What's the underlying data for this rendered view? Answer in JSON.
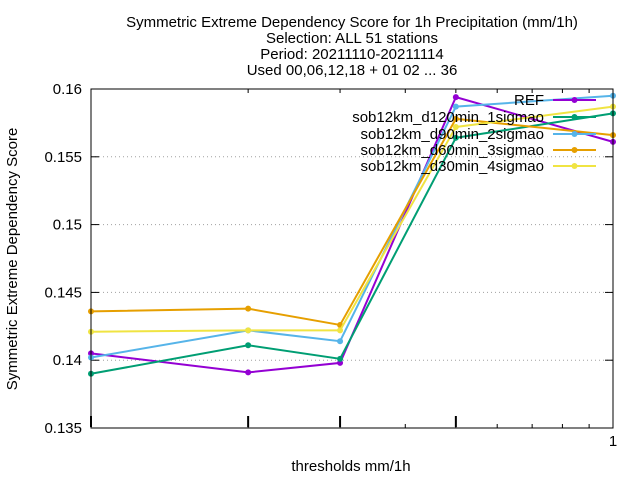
{
  "chart_data": {
    "type": "line",
    "title_lines": [
      "Symmetric Extreme Dependency Score  for 1h Precipitation (mm/1h)",
      "Selection: ALL     51 stations",
      "Period: 20211110-20211114",
      "Used 00,06,12,18 + 01 02 ... 36"
    ],
    "xlabel": "thresholds mm/1h",
    "ylabel": "Symmetric Extreme Dependency Score",
    "xscale": "log",
    "x": [
      0.1,
      0.2,
      0.3,
      0.5,
      1.0
    ],
    "xlim": [
      0.1,
      1.0
    ],
    "ylim": [
      0.135,
      0.16
    ],
    "x_tick_labels": [
      {
        "value": 1.0,
        "label": "1"
      }
    ],
    "y_ticks": [
      0.135,
      0.14,
      0.145,
      0.15,
      0.155,
      0.16
    ],
    "y_tick_labels": [
      "0.135",
      "0.14",
      "0.145",
      "0.15",
      "0.155",
      "0.16"
    ],
    "grid": true,
    "legend_position": "top-right",
    "series": [
      {
        "name": "REF",
        "color": "#9400d3",
        "values": [
          0.1405,
          0.1391,
          0.1398,
          0.1594,
          0.1561
        ]
      },
      {
        "name": "sob12km_d120min_1sigmao",
        "color": "#009e73",
        "values": [
          0.139,
          0.1411,
          0.1401,
          0.1564,
          0.1582
        ]
      },
      {
        "name": "sob12km_d90min_2sigmao",
        "color": "#56b4e9",
        "values": [
          0.1402,
          0.1422,
          0.1414,
          0.1587,
          0.1595
        ]
      },
      {
        "name": "sob12km_d60min_3sigmao",
        "color": "#e69f00",
        "values": [
          0.1436,
          0.1438,
          0.1426,
          0.1578,
          0.1566
        ]
      },
      {
        "name": "sob12km_d30min_4sigmao",
        "color": "#f0e442",
        "values": [
          0.1421,
          0.1422,
          0.1422,
          0.1572,
          0.1587
        ]
      }
    ]
  }
}
